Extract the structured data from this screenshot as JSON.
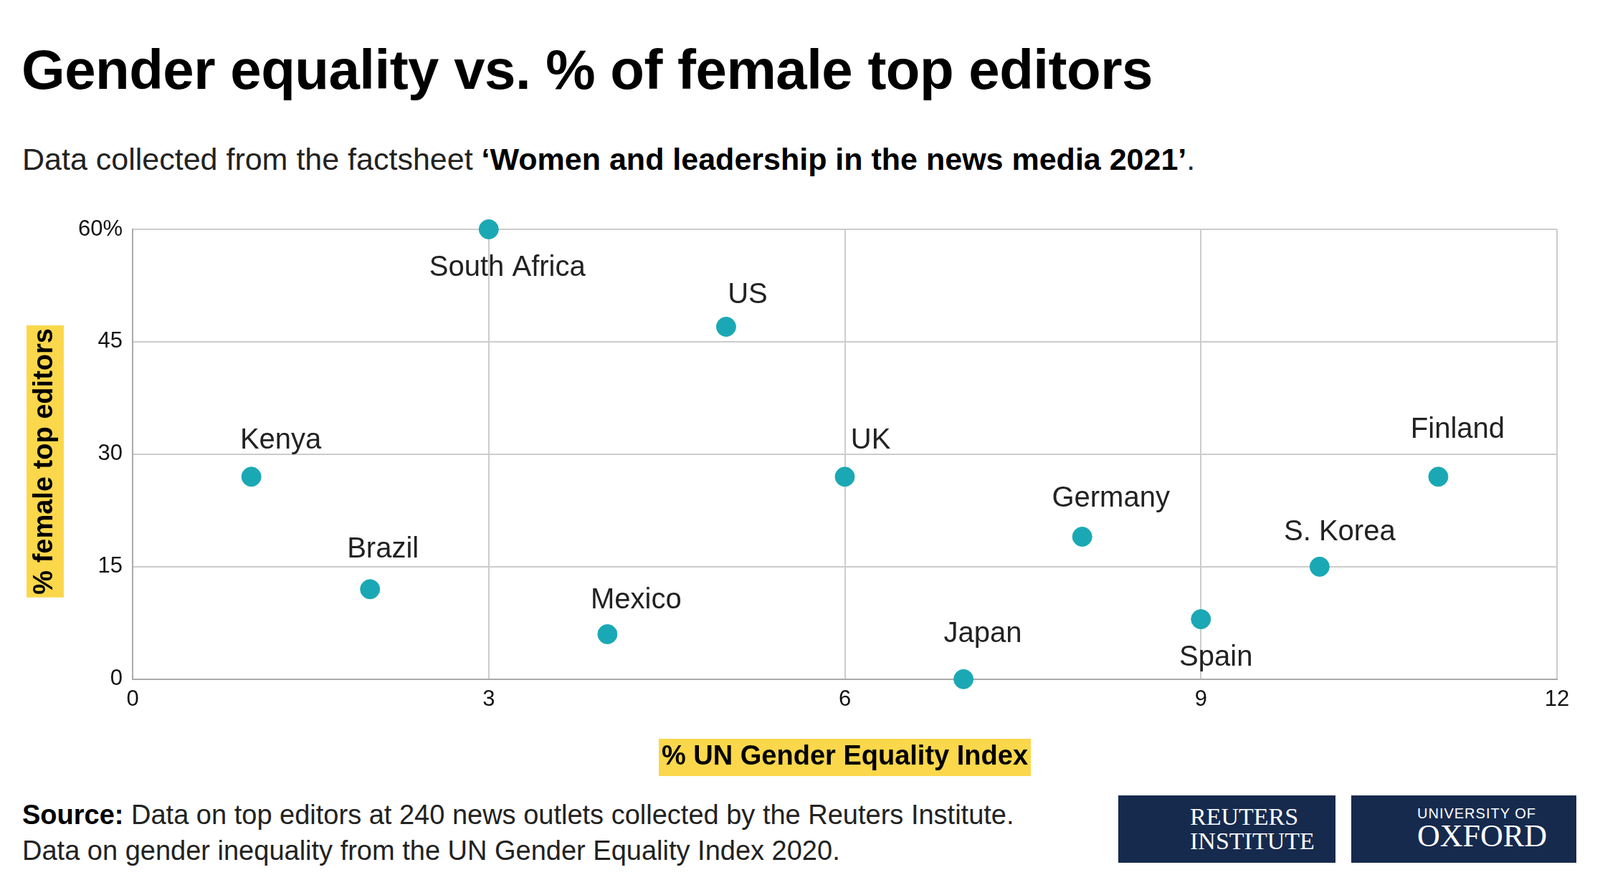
{
  "chart_data": {
    "type": "scatter",
    "title": "Gender equality vs. % of female top editors",
    "subtitle": [
      "Data collected from the factsheet ",
      "‘Women and leadership in the news media 2021’",
      "."
    ],
    "x_label": "% UN Gender Equality Index",
    "y_label": "% female top editors",
    "categories": [
      "Kenya",
      "Brazil",
      "South Africa",
      "Mexico",
      "US",
      "UK",
      "Japan",
      "Germany",
      "Spain",
      "S. Korea",
      "Finland"
    ],
    "x": [
      1,
      2,
      3,
      4,
      5,
      6,
      7,
      8,
      9,
      10,
      11
    ],
    "values": [
      27,
      12,
      60,
      6,
      47,
      27,
      0,
      19,
      8,
      15,
      27
    ],
    "color": "#1ba8b5",
    "marker": "circle",
    "xlim": [
      0,
      12
    ],
    "xticks": [
      0,
      3,
      6,
      9,
      12
    ],
    "ylim": [
      0,
      60
    ],
    "yticks": [
      0,
      15,
      30,
      45,
      {
        "value": 60,
        "label": "60%"
      }
    ],
    "grid": true
  },
  "footer": {
    "source_label": "Source:",
    "source_text": "Data on top editors at 240 news outlets collected by the Reuters Institute. Data on gender inequality from the UN Gender Equality Index 2020.",
    "logos": [
      [
        "REUTERS",
        "INSTITUTE"
      ],
      [
        "UNIVERSITY OF",
        "OXFORD"
      ]
    ]
  }
}
